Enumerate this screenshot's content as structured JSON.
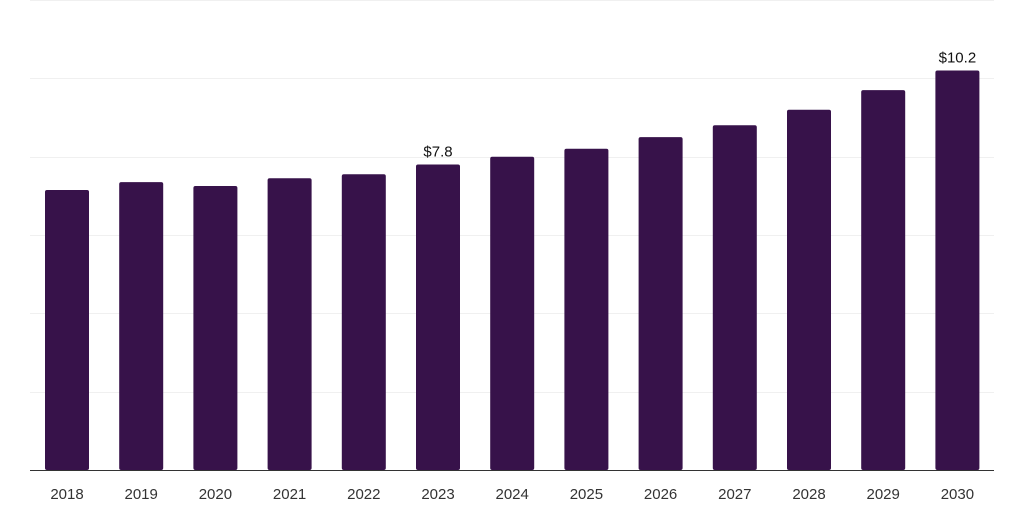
{
  "chart_data": {
    "type": "bar",
    "categories": [
      "2018",
      "2019",
      "2020",
      "2021",
      "2022",
      "2023",
      "2024",
      "2025",
      "2026",
      "2027",
      "2028",
      "2029",
      "2030"
    ],
    "values": [
      7.15,
      7.35,
      7.25,
      7.45,
      7.55,
      7.8,
      8.0,
      8.2,
      8.5,
      8.8,
      9.2,
      9.7,
      10.2
    ],
    "value_labels": {
      "2023": "$7.8",
      "2030": "$10.2"
    },
    "title": "",
    "xlabel": "",
    "ylabel": "",
    "ylim": [
      0,
      12
    ],
    "grid": true,
    "legend": "none",
    "colors": {
      "bar": "#37124a",
      "grid": "#f0f0f0",
      "axis": "#333333"
    }
  }
}
